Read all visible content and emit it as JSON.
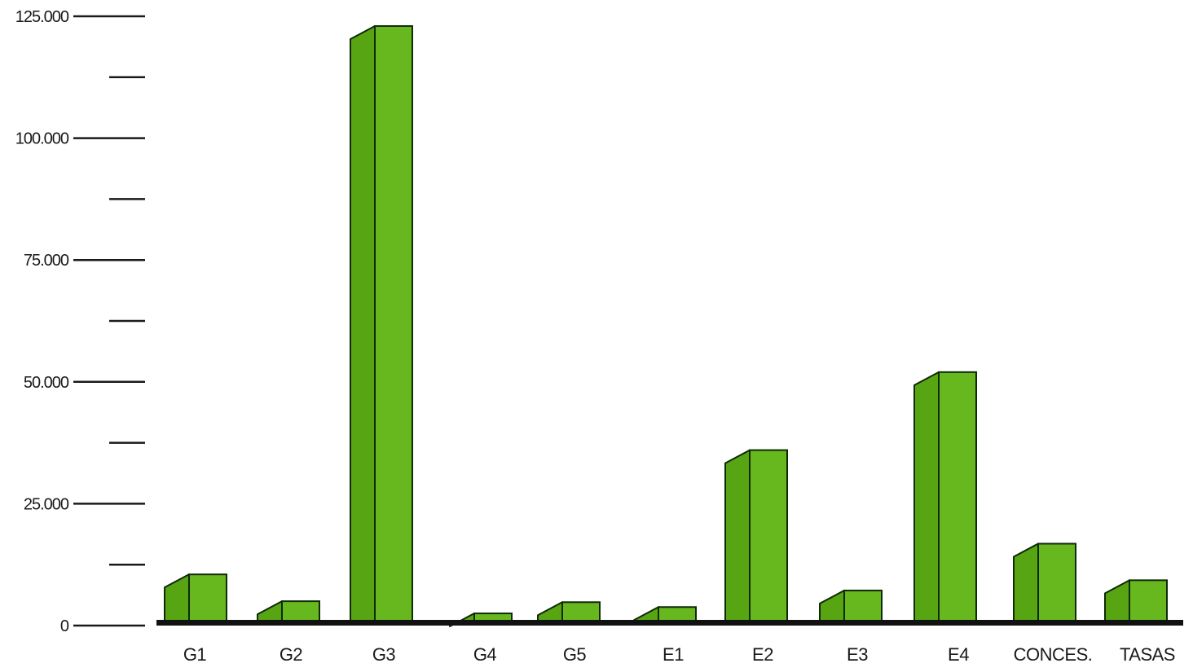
{
  "chart_data": {
    "type": "bar",
    "categories": [
      "G1",
      "G2",
      "G3",
      "G4",
      "G5",
      "E1",
      "E2",
      "E3",
      "E4",
      "CONCES.",
      "TASAS"
    ],
    "values": [
      10500,
      5000,
      123000,
      2500,
      4800,
      3800,
      36000,
      7200,
      52000,
      16800,
      9300
    ],
    "ylim": [
      0,
      125000
    ],
    "y_major_ticks": [
      0,
      25000,
      50000,
      75000,
      100000,
      125000
    ],
    "y_tick_labels": [
      "0",
      "25.000",
      "50.000",
      "75.000",
      "100.000",
      "125.000"
    ],
    "y_minor_ticks": [
      12500,
      37500,
      62500,
      87500,
      112500
    ],
    "grid": false,
    "colors": {
      "bar_front": "#66b81e",
      "bar_side": "#58a514",
      "bar_outline": "#0f2a06",
      "axis": "#1a1a1a"
    }
  }
}
